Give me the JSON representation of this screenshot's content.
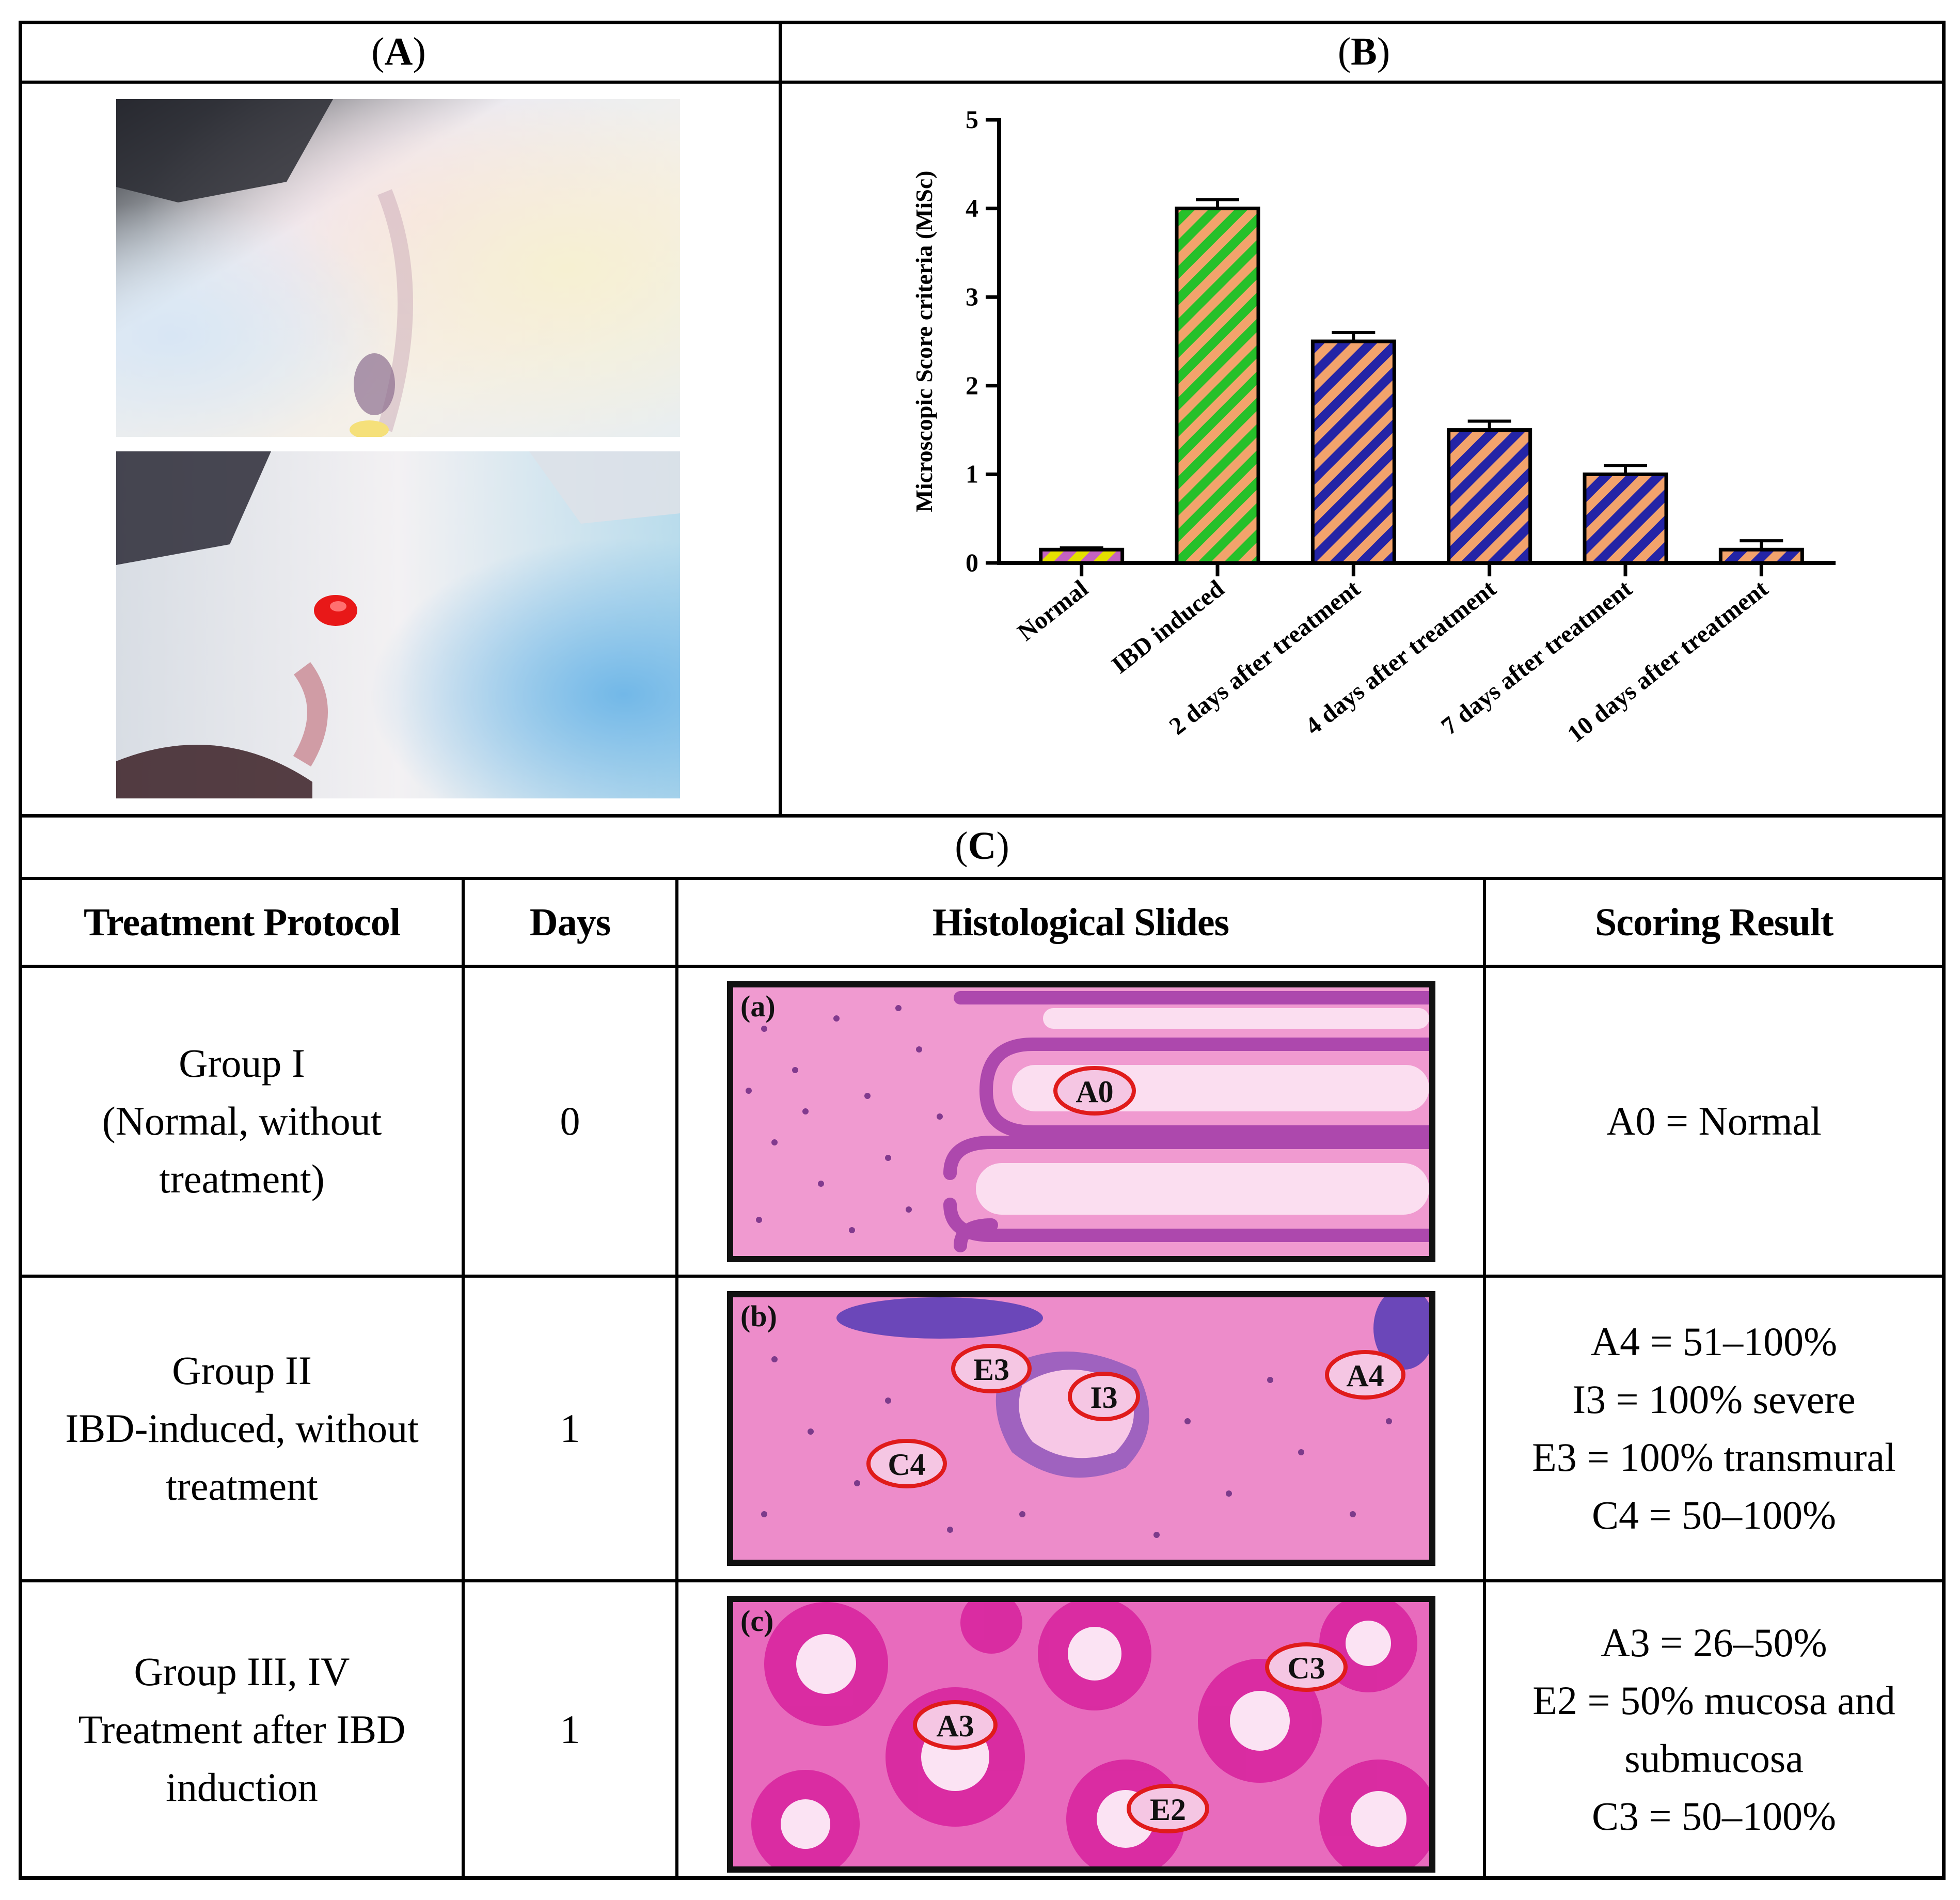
{
  "panels": {
    "a_label": "A",
    "b_label": "B",
    "c_label": "C"
  },
  "chart_data": {
    "type": "bar",
    "ylabel": "Microscopic Score criteria (MiSc)",
    "categories": [
      "Normal",
      "IBD induced",
      "2 days after treatment",
      "4 days after treatment",
      "7 days after treatment",
      "10 days after treatment"
    ],
    "values": [
      0.15,
      4.0,
      2.5,
      1.5,
      1.0,
      0.15
    ],
    "errors": [
      0.02,
      0.1,
      0.1,
      0.1,
      0.1,
      0.1
    ],
    "ylim": [
      0,
      5
    ],
    "yticks": [
      "0",
      "1",
      "2",
      "3",
      "4",
      "5"
    ],
    "grid": false,
    "legend": "none",
    "colors": {
      "normal": [
        "#e5e000",
        "#c462c0"
      ],
      "ibd": [
        "#26c02a",
        "#f2a36c"
      ],
      "treatment": [
        "#2424a6",
        "#f2a36c"
      ]
    }
  },
  "table": {
    "headers": [
      "Treatment Protocol",
      "Days",
      "Histological Slides",
      "Scoring Result"
    ],
    "rows": [
      {
        "protocol": [
          "Group I",
          "(Normal, without",
          "treatment)"
        ],
        "days": "0",
        "slide_label": "(a)",
        "markers": [
          "A0"
        ],
        "result": [
          "A0 = Normal"
        ]
      },
      {
        "protocol": [
          "Group II",
          "IBD-induced, without",
          "treatment"
        ],
        "days": "1",
        "slide_label": "(b)",
        "markers": [
          "E3",
          "I3",
          "A4",
          "C4"
        ],
        "result": [
          "A4 = 51–100%",
          "I3 = 100% severe",
          "E3 = 100% transmural",
          "C4 = 50–100%"
        ]
      },
      {
        "protocol": [
          "Group III, IV",
          "Treatment after IBD",
          "induction"
        ],
        "days": "1",
        "slide_label": "(c)",
        "markers": [
          "A3",
          "C3",
          "E2"
        ],
        "result": [
          "A3 = 26–50%",
          "E2 = 50% mucosa and",
          "submucosa",
          "C3 = 50–100%"
        ]
      }
    ]
  }
}
